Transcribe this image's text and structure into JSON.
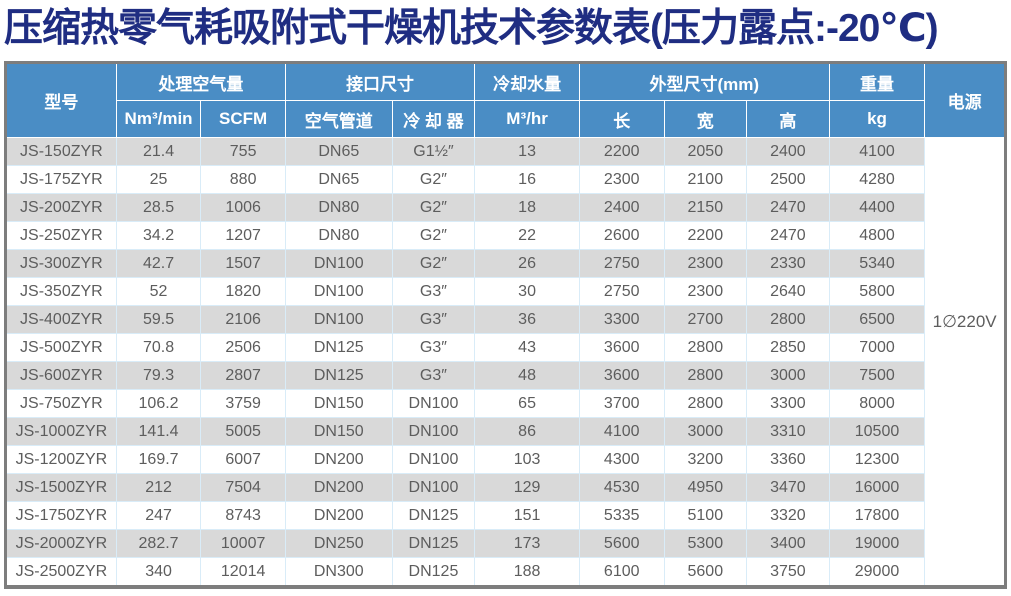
{
  "title": "压缩热零气耗吸附式干燥机技术参数表(压力露点:-20℃)",
  "colors": {
    "title_text": "#1f2d82",
    "header_bg": "#4a8dc5",
    "header_text": "#ffffff",
    "row_alt_bg": "#d9d9d9",
    "row_bg": "#ffffff",
    "cell_text": "#5d5d5d",
    "outer_border": "#7d7d7d",
    "cell_border": "#d9ecf8"
  },
  "table": {
    "header": {
      "model": "型号",
      "air_volume_group": "处理空气量",
      "air_volume_units": [
        "Nm³/min",
        "SCFM"
      ],
      "interface_group": "接口尺寸",
      "interface_subs": [
        "空气管道",
        "冷 却 器"
      ],
      "cooling_water_group": "冷却水量",
      "cooling_water_unit": "M³/hr",
      "dimensions_group": "外型尺寸(mm)",
      "dimension_subs": [
        "长",
        "宽",
        "高"
      ],
      "weight_group": "重量",
      "weight_unit": "kg",
      "power": "电源"
    },
    "power_value": "1∅220V",
    "rows": [
      [
        "JS-150ZYR",
        "21.4",
        "755",
        "DN65",
        "G1½″",
        "13",
        "2200",
        "2050",
        "2400",
        "4100"
      ],
      [
        "JS-175ZYR",
        "25",
        "880",
        "DN65",
        "G2″",
        "16",
        "2300",
        "2100",
        "2500",
        "4280"
      ],
      [
        "JS-200ZYR",
        "28.5",
        "1006",
        "DN80",
        "G2″",
        "18",
        "2400",
        "2150",
        "2470",
        "4400"
      ],
      [
        "JS-250ZYR",
        "34.2",
        "1207",
        "DN80",
        "G2″",
        "22",
        "2600",
        "2200",
        "2470",
        "4800"
      ],
      [
        "JS-300ZYR",
        "42.7",
        "1507",
        "DN100",
        "G2″",
        "26",
        "2750",
        "2300",
        "2330",
        "5340"
      ],
      [
        "JS-350ZYR",
        "52",
        "1820",
        "DN100",
        "G3″",
        "30",
        "2750",
        "2300",
        "2640",
        "5800"
      ],
      [
        "JS-400ZYR",
        "59.5",
        "2106",
        "DN100",
        "G3″",
        "36",
        "3300",
        "2700",
        "2800",
        "6500"
      ],
      [
        "JS-500ZYR",
        "70.8",
        "2506",
        "DN125",
        "G3″",
        "43",
        "3600",
        "2800",
        "2850",
        "7000"
      ],
      [
        "JS-600ZYR",
        "79.3",
        "2807",
        "DN125",
        "G3″",
        "48",
        "3600",
        "2800",
        "3000",
        "7500"
      ],
      [
        "JS-750ZYR",
        "106.2",
        "3759",
        "DN150",
        "DN100",
        "65",
        "3700",
        "2800",
        "3300",
        "8000"
      ],
      [
        "JS-1000ZYR",
        "141.4",
        "5005",
        "DN150",
        "DN100",
        "86",
        "4100",
        "3000",
        "3310",
        "10500"
      ],
      [
        "JS-1200ZYR",
        "169.7",
        "6007",
        "DN200",
        "DN100",
        "103",
        "4300",
        "3200",
        "3360",
        "12300"
      ],
      [
        "JS-1500ZYR",
        "212",
        "7504",
        "DN200",
        "DN100",
        "129",
        "4530",
        "4950",
        "3470",
        "16000"
      ],
      [
        "JS-1750ZYR",
        "247",
        "8743",
        "DN200",
        "DN125",
        "151",
        "5335",
        "5100",
        "3320",
        "17800"
      ],
      [
        "JS-2000ZYR",
        "282.7",
        "10007",
        "DN250",
        "DN125",
        "173",
        "5600",
        "5300",
        "3400",
        "19000"
      ],
      [
        "JS-2500ZYR",
        "340",
        "12014",
        "DN300",
        "DN125",
        "188",
        "6100",
        "5600",
        "3750",
        "29000"
      ]
    ]
  }
}
